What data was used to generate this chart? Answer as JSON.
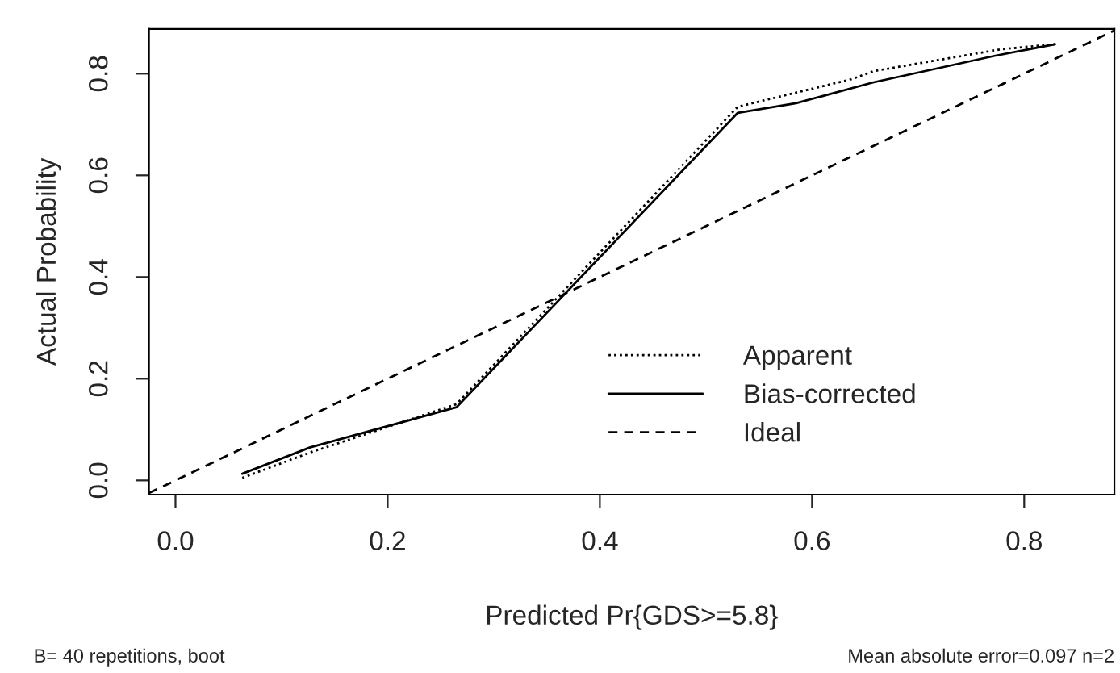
{
  "chart_data": {
    "type": "line",
    "xlabel": "Predicted Pr{GDS>=5.8}",
    "ylabel": "Actual Probability",
    "xlim": [
      -0.025,
      0.885
    ],
    "ylim": [
      -0.028,
      0.888
    ],
    "xticks": [
      {
        "value": 0,
        "label": "0.0"
      },
      0.2,
      0.4,
      0.6,
      0.8
    ],
    "yticks": [
      {
        "value": 0,
        "label": "0.0"
      },
      0.2,
      0.4,
      0.6,
      0.8
    ],
    "grid": false,
    "legend": "bottom right",
    "marker": "none",
    "series": [
      {
        "name": "Apparent",
        "color": "#000000",
        "line_style": "dotted",
        "x": [
          0.063,
          0.127,
          0.265,
          0.53,
          0.637,
          0.658,
          0.778,
          0.829
        ],
        "values": [
          0.005,
          0.055,
          0.15,
          0.735,
          0.789,
          0.805,
          0.848,
          0.858
        ]
      },
      {
        "name": "Bias-corrected",
        "color": "#000000",
        "line_style": "solid",
        "x": [
          0.063,
          0.127,
          0.265,
          0.53,
          0.585,
          0.658,
          0.772,
          0.829
        ],
        "values": [
          0.013,
          0.065,
          0.144,
          0.723,
          0.742,
          0.783,
          0.835,
          0.858
        ]
      },
      {
        "name": "Ideal",
        "color": "#000000",
        "line_style": "dashed",
        "x": [
          -0.025,
          0.885
        ],
        "values": [
          -0.025,
          0.885
        ]
      }
    ],
    "annotations": [
      "B= 40 repetitions, boot",
      "Mean absolute error=0.097 n=2"
    ]
  }
}
